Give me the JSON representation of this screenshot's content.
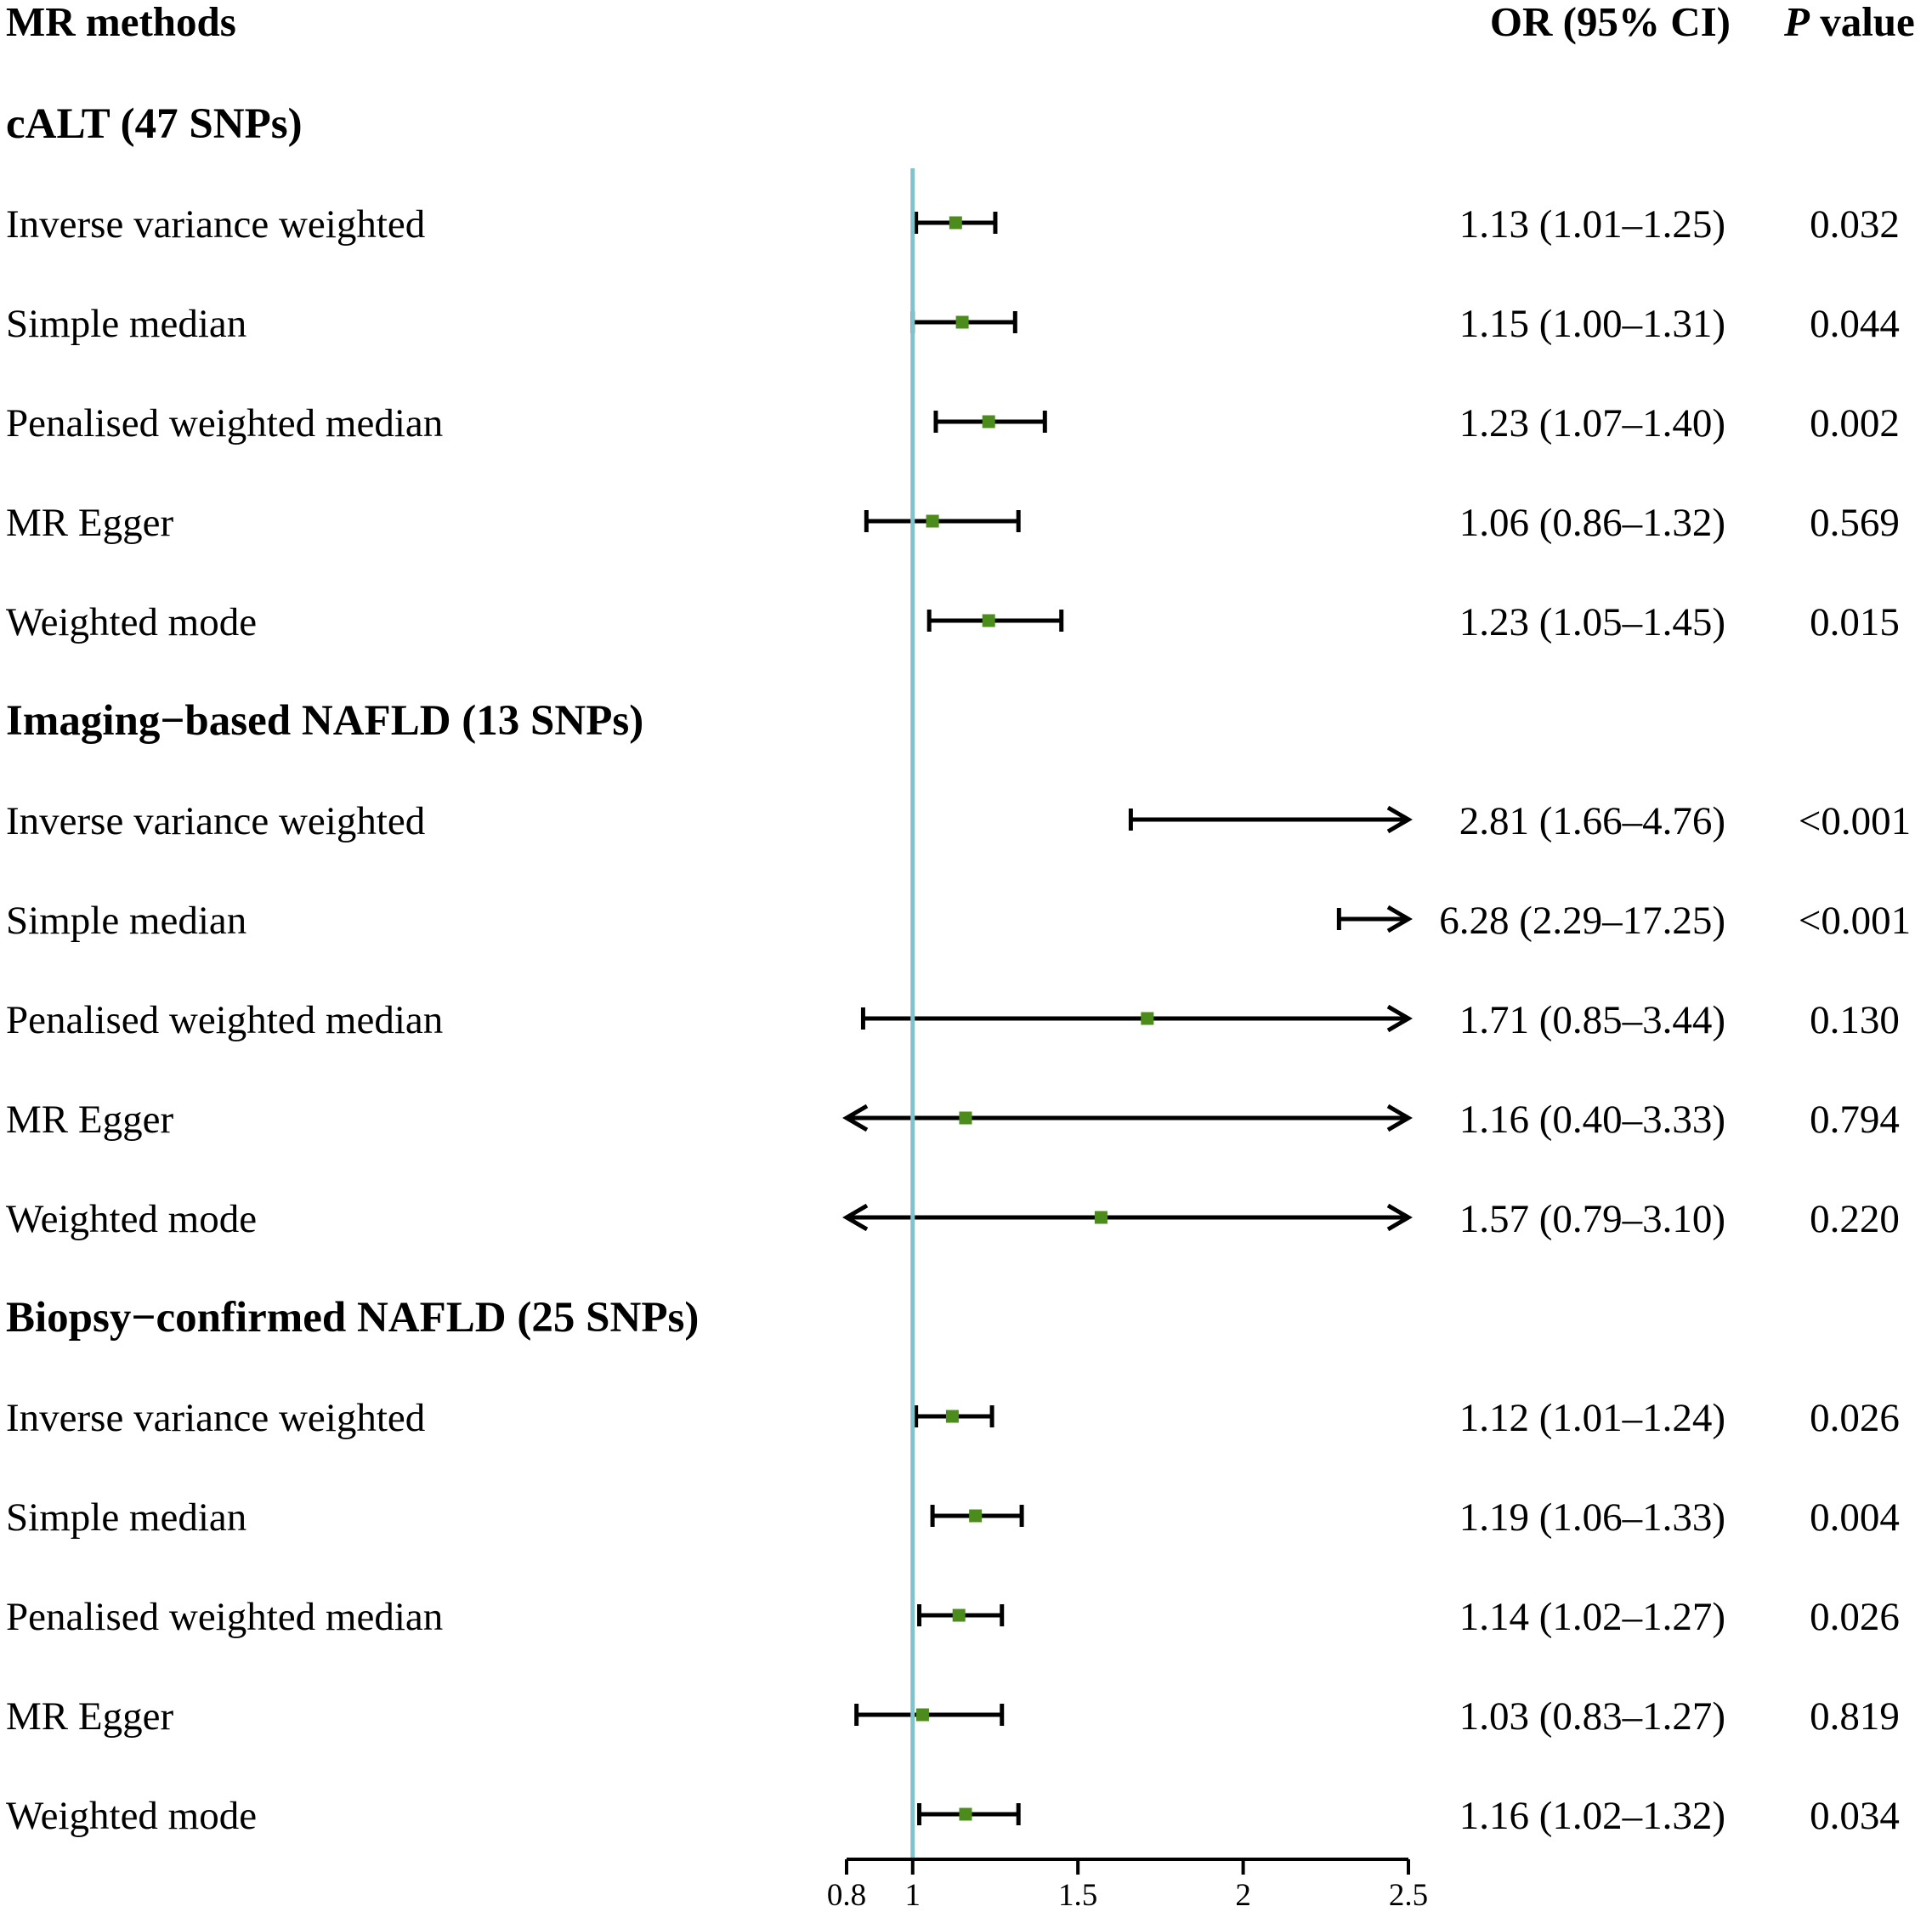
{
  "header": {
    "methods_label": "MR methods",
    "or_label": "OR (95% CI)",
    "p_label_italic": "P",
    "p_label_rest": " value"
  },
  "colors": {
    "reference_line": "#7fc4cc",
    "point": "#4c8c1c",
    "ci_line": "#000000"
  },
  "chart_data": {
    "type": "forest",
    "title": "",
    "xlabel": "",
    "xlim": [
      0.8,
      2.5
    ],
    "reference_value": 1,
    "ticks": [
      0.8,
      1,
      1.5,
      2,
      2.5
    ],
    "tick_labels": [
      "0.8",
      "1",
      "1.5",
      "2",
      "2.5"
    ],
    "groups": [
      {
        "name": "cALT (47 SNPs)",
        "rows": [
          {
            "method": "Inverse variance weighted",
            "or": 1.13,
            "lower": 1.01,
            "upper": 1.25,
            "or_text": "1.13 (1.01–1.25)",
            "p": "0.032"
          },
          {
            "method": "Simple median",
            "or": 1.15,
            "lower": 1.0,
            "upper": 1.31,
            "or_text": "1.15 (1.00–1.31)",
            "p": "0.044"
          },
          {
            "method": "Penalised weighted median",
            "or": 1.23,
            "lower": 1.07,
            "upper": 1.4,
            "or_text": "1.23 (1.07–1.40)",
            "p": "0.002"
          },
          {
            "method": "MR Egger",
            "or": 1.06,
            "lower": 0.86,
            "upper": 1.32,
            "or_text": "1.06 (0.86–1.32)",
            "p": "0.569"
          },
          {
            "method": "Weighted mode",
            "or": 1.23,
            "lower": 1.05,
            "upper": 1.45,
            "or_text": "1.23 (1.05–1.45)",
            "p": "0.015"
          }
        ]
      },
      {
        "name": "Imaging−based NAFLD (13 SNPs)",
        "rows": [
          {
            "method": "Inverse variance weighted",
            "or": 2.81,
            "lower": 1.66,
            "upper": 4.76,
            "or_text": "2.81 (1.66–4.76)",
            "p": "<0.001"
          },
          {
            "method": "Simple median",
            "or": 6.28,
            "lower": 2.29,
            "upper": 17.25,
            "or_text": "6.28 (2.29–17.25)",
            "p": "<0.001"
          },
          {
            "method": "Penalised weighted median",
            "or": 1.71,
            "lower": 0.85,
            "upper": 3.44,
            "or_text": "1.71 (0.85–3.44)",
            "p": "0.130"
          },
          {
            "method": "MR Egger",
            "or": 1.16,
            "lower": 0.4,
            "upper": 3.33,
            "or_text": "1.16 (0.40–3.33)",
            "p": "0.794"
          },
          {
            "method": "Weighted mode",
            "or": 1.57,
            "lower": 0.79,
            "upper": 3.1,
            "or_text": "1.57 (0.79–3.10)",
            "p": "0.220"
          }
        ]
      },
      {
        "name": "Biopsy−confirmed NAFLD (25 SNPs)",
        "rows": [
          {
            "method": "Inverse variance weighted",
            "or": 1.12,
            "lower": 1.01,
            "upper": 1.24,
            "or_text": "1.12 (1.01–1.24)",
            "p": "0.026"
          },
          {
            "method": "Simple median",
            "or": 1.19,
            "lower": 1.06,
            "upper": 1.33,
            "or_text": "1.19 (1.06–1.33)",
            "p": "0.004"
          },
          {
            "method": "Penalised weighted median",
            "or": 1.14,
            "lower": 1.02,
            "upper": 1.27,
            "or_text": "1.14 (1.02–1.27)",
            "p": "0.026"
          },
          {
            "method": "MR Egger",
            "or": 1.03,
            "lower": 0.83,
            "upper": 1.27,
            "or_text": "1.03 (0.83–1.27)",
            "p": "0.819"
          },
          {
            "method": "Weighted mode",
            "or": 1.16,
            "lower": 1.02,
            "upper": 1.32,
            "or_text": "1.16 (1.02–1.32)",
            "p": "0.034"
          }
        ]
      }
    ]
  }
}
